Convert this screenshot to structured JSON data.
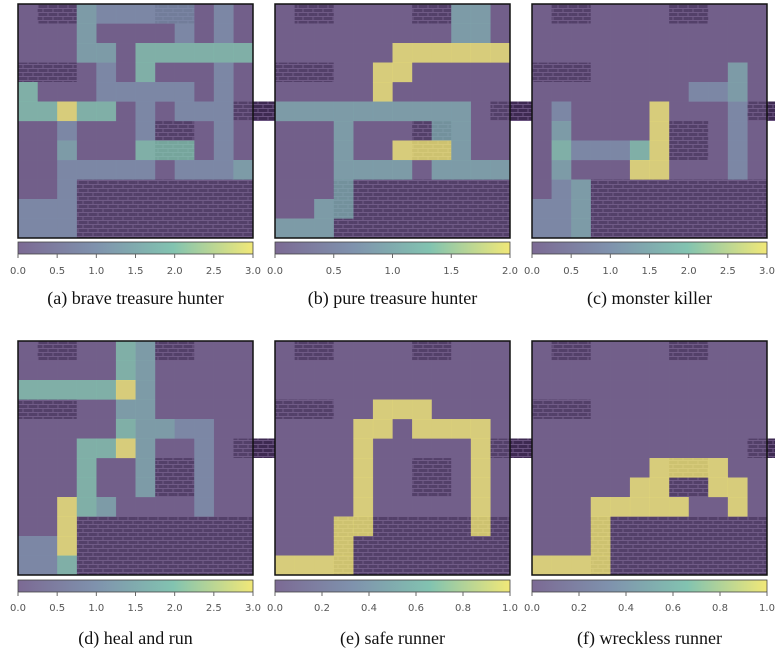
{
  "chart_data": [
    {
      "type": "heatmap",
      "caption": "(a) brave treasure hunter",
      "ylim": [
        0,
        3
      ],
      "yticks": [
        {
          "value": 0,
          "label": "0.0"
        },
        0.5,
        {
          "value": 1,
          "label": "1.0"
        },
        1.5,
        {
          "value": 2,
          "label": "2.0"
        },
        2.5,
        {
          "value": 3,
          "label": "3.0"
        }
      ],
      "values": [
        [
          0,
          0,
          0,
          1.5,
          1,
          1,
          1,
          1,
          1,
          0,
          1,
          0
        ],
        [
          0,
          0,
          0,
          1.5,
          0,
          0,
          0,
          0,
          1,
          0,
          1,
          0
        ],
        [
          0,
          0,
          0,
          1.5,
          1.5,
          0,
          2,
          2,
          2,
          2,
          2,
          2
        ],
        [
          0,
          0,
          0,
          0,
          1,
          0,
          2,
          0,
          0,
          0,
          1,
          0
        ],
        [
          2,
          0,
          0,
          0,
          1,
          1,
          1,
          1,
          1,
          0,
          1,
          0
        ],
        [
          2,
          2,
          3,
          2,
          2,
          0,
          1,
          0,
          1,
          1,
          1,
          0
        ],
        [
          0,
          0,
          1,
          0,
          0,
          0,
          1,
          0,
          0,
          0,
          1,
          0
        ],
        [
          0,
          0,
          1.5,
          0,
          0,
          0,
          2,
          2,
          2,
          0,
          1,
          0
        ],
        [
          0,
          0,
          1,
          1,
          1,
          1,
          1,
          0,
          1,
          1,
          1,
          1.5
        ],
        [
          0,
          0,
          1,
          0,
          0,
          0,
          0,
          0,
          0,
          0,
          0,
          0
        ],
        [
          1,
          1,
          1,
          0,
          0,
          0,
          0,
          0,
          0,
          0,
          0,
          0
        ],
        [
          1,
          1,
          1,
          0,
          0,
          0,
          0,
          0,
          0,
          0,
          0,
          0
        ]
      ]
    },
    {
      "type": "heatmap",
      "caption": "(b) pure treasure hunter",
      "ylim": [
        0,
        2
      ],
      "yticks": [
        {
          "value": 0,
          "label": "0.0"
        },
        0.5,
        {
          "value": 1,
          "label": "1.0"
        },
        1.5,
        {
          "value": 2,
          "label": "2.0"
        }
      ],
      "values": [
        [
          0,
          0,
          0,
          0,
          0,
          0,
          0,
          0,
          0,
          1,
          1,
          0
        ],
        [
          0,
          0,
          0,
          0,
          0,
          0,
          0,
          0,
          0,
          1,
          1,
          0
        ],
        [
          0,
          0,
          0,
          0,
          0,
          0,
          2,
          2,
          2,
          2,
          2,
          2
        ],
        [
          0,
          0,
          0,
          0,
          0,
          2,
          2,
          0,
          0,
          0,
          0,
          0
        ],
        [
          0,
          0,
          0,
          0,
          0,
          2,
          0,
          0,
          0,
          0,
          0,
          0
        ],
        [
          1,
          1,
          1,
          1,
          1,
          1,
          1,
          1,
          1,
          1,
          0,
          0
        ],
        [
          0,
          0,
          0,
          1,
          0,
          0,
          0,
          0,
          1,
          1,
          0,
          0
        ],
        [
          0,
          0,
          0,
          1,
          0,
          0,
          2,
          2,
          2,
          1,
          0,
          0
        ],
        [
          0,
          0,
          0,
          1,
          1,
          1,
          1,
          0,
          1,
          1,
          1,
          1
        ],
        [
          0,
          0,
          0,
          1,
          0,
          0,
          0,
          0,
          0,
          0,
          0,
          0
        ],
        [
          0,
          0,
          1,
          1,
          0,
          0,
          0,
          0,
          0,
          0,
          0,
          0
        ],
        [
          1,
          1,
          1,
          0,
          0,
          0,
          0,
          0,
          0,
          0,
          0,
          0
        ]
      ]
    },
    {
      "type": "heatmap",
      "caption": "(c) monster killer",
      "ylim": [
        0,
        3
      ],
      "yticks": [
        {
          "value": 0,
          "label": "0.0"
        },
        0.5,
        {
          "value": 1,
          "label": "1.0"
        },
        1.5,
        {
          "value": 2,
          "label": "2.0"
        },
        2.5,
        {
          "value": 3,
          "label": "3.0"
        }
      ],
      "values": [
        [
          0,
          0,
          0,
          0,
          0,
          0,
          0,
          0,
          0,
          0,
          0,
          0
        ],
        [
          0,
          0,
          0,
          0,
          0,
          0,
          0,
          0,
          0,
          0,
          0,
          0
        ],
        [
          0,
          0,
          0,
          0,
          0,
          0,
          0,
          0,
          0,
          0,
          0,
          0
        ],
        [
          0,
          0,
          0,
          0,
          0,
          0,
          0,
          0,
          0,
          0,
          1.5,
          0
        ],
        [
          0,
          0,
          0,
          0,
          0,
          0,
          0,
          0,
          1,
          1,
          1.5,
          0
        ],
        [
          0,
          1,
          0,
          0,
          0,
          0,
          3,
          0,
          0,
          0,
          1,
          0
        ],
        [
          0,
          1.5,
          0,
          0,
          0,
          0,
          3,
          0,
          0,
          0,
          1,
          0
        ],
        [
          0,
          2,
          1,
          1,
          1,
          2,
          3,
          0,
          0,
          0,
          1,
          0
        ],
        [
          0,
          1.5,
          0,
          0,
          0,
          3,
          3,
          0,
          0,
          0,
          1,
          0
        ],
        [
          0,
          1,
          1.5,
          0,
          0,
          0,
          0,
          0,
          0,
          0,
          0,
          0
        ],
        [
          1,
          1,
          1.5,
          0,
          0,
          0,
          0,
          0,
          0,
          0,
          0,
          0
        ],
        [
          1,
          1,
          1.5,
          0,
          0,
          0,
          0,
          0,
          0,
          0,
          0,
          0
        ]
      ]
    },
    {
      "type": "heatmap",
      "caption": "(d) heal and run",
      "ylim": [
        0,
        3
      ],
      "yticks": [
        {
          "value": 0,
          "label": "0.0"
        },
        0.5,
        {
          "value": 1,
          "label": "1.0"
        },
        1.5,
        {
          "value": 2,
          "label": "2.0"
        },
        2.5,
        {
          "value": 3,
          "label": "3.0"
        }
      ],
      "values": [
        [
          0,
          0,
          0,
          0,
          0,
          2,
          1.5,
          0,
          0,
          0,
          0,
          0
        ],
        [
          0,
          0,
          0,
          0,
          0,
          2,
          1.5,
          0,
          0,
          0,
          0,
          0
        ],
        [
          2,
          2,
          2,
          2,
          2,
          3,
          1.5,
          0,
          0,
          0,
          0,
          0
        ],
        [
          0,
          0,
          0,
          0,
          0,
          1.5,
          1.5,
          0,
          0,
          0,
          0,
          0
        ],
        [
          0,
          0,
          0,
          0,
          0,
          2,
          1.5,
          1.5,
          1,
          1,
          0,
          0
        ],
        [
          0,
          0,
          0,
          2,
          2,
          3,
          1.5,
          0,
          0,
          1,
          0,
          0
        ],
        [
          0,
          0,
          0,
          2,
          0,
          0,
          1.5,
          0,
          0,
          1,
          0,
          0
        ],
        [
          0,
          0,
          0,
          2,
          0,
          0,
          1.5,
          0,
          0,
          1,
          0,
          0
        ],
        [
          0,
          0,
          3,
          2,
          1.5,
          0,
          0,
          0,
          0,
          1,
          0,
          0
        ],
        [
          0,
          0,
          3,
          0,
          0,
          0,
          0,
          0,
          0,
          0,
          0,
          0
        ],
        [
          1,
          1,
          3,
          0,
          0,
          0,
          0,
          0,
          0,
          0,
          0,
          0
        ],
        [
          1,
          1,
          2,
          0,
          0,
          0,
          0,
          0,
          0,
          0,
          0,
          0
        ]
      ]
    },
    {
      "type": "heatmap",
      "caption": "(e) safe runner",
      "ylim": [
        0,
        1
      ],
      "yticks": [
        {
          "value": 0,
          "label": "0.0"
        },
        0.2,
        0.4,
        0.6,
        0.8,
        {
          "value": 1,
          "label": "1.0"
        }
      ],
      "values": [
        [
          0,
          0,
          0,
          0,
          0,
          0,
          0,
          0,
          0,
          0,
          0,
          0
        ],
        [
          0,
          0,
          0,
          0,
          0,
          0,
          0,
          0,
          0,
          0,
          0,
          0
        ],
        [
          0,
          0,
          0,
          0,
          0,
          0,
          0,
          0,
          0,
          0,
          0,
          0
        ],
        [
          0,
          0,
          0,
          0,
          0,
          1,
          1,
          1,
          0,
          0,
          0,
          0
        ],
        [
          0,
          0,
          0,
          0,
          1,
          1,
          0,
          1,
          1,
          1,
          1,
          0
        ],
        [
          0,
          0,
          0,
          0,
          1,
          0,
          0,
          0,
          0,
          0,
          1,
          0
        ],
        [
          0,
          0,
          0,
          0,
          1,
          0,
          0,
          0,
          0,
          0,
          1,
          0
        ],
        [
          0,
          0,
          0,
          0,
          1,
          0,
          0,
          0,
          0,
          0,
          1,
          0
        ],
        [
          0,
          0,
          0,
          0,
          1,
          0,
          0,
          0,
          0,
          0,
          1,
          0
        ],
        [
          0,
          0,
          0,
          1,
          1,
          0,
          0,
          0,
          0,
          0,
          1,
          0
        ],
        [
          0,
          0,
          0,
          1,
          0,
          0,
          0,
          0,
          0,
          0,
          0,
          0
        ],
        [
          1,
          1,
          1,
          1,
          0,
          0,
          0,
          0,
          0,
          0,
          0,
          0
        ]
      ]
    },
    {
      "type": "heatmap",
      "caption": "(f) wreckless runner",
      "ylim": [
        0,
        1
      ],
      "yticks": [
        {
          "value": 0,
          "label": "0.0"
        },
        0.2,
        0.4,
        0.6,
        0.8,
        {
          "value": 1,
          "label": "1.0"
        }
      ],
      "values": [
        [
          0,
          0,
          0,
          0,
          0,
          0,
          0,
          0,
          0,
          0,
          0,
          0
        ],
        [
          0,
          0,
          0,
          0,
          0,
          0,
          0,
          0,
          0,
          0,
          0,
          0
        ],
        [
          0,
          0,
          0,
          0,
          0,
          0,
          0,
          0,
          0,
          0,
          0,
          0
        ],
        [
          0,
          0,
          0,
          0,
          0,
          0,
          0,
          0,
          0,
          0,
          0,
          0
        ],
        [
          0,
          0,
          0,
          0,
          0,
          0,
          0,
          0,
          0,
          0,
          0,
          0
        ],
        [
          0,
          0,
          0,
          0,
          0,
          0,
          0,
          0,
          0,
          0,
          0,
          0
        ],
        [
          0,
          0,
          0,
          0,
          0,
          0,
          1,
          1,
          1,
          1,
          0,
          0
        ],
        [
          0,
          0,
          0,
          0,
          0,
          1,
          1,
          0,
          0,
          1,
          1,
          0
        ],
        [
          0,
          0,
          0,
          1,
          1,
          1,
          1,
          1,
          0,
          0,
          1,
          0
        ],
        [
          0,
          0,
          0,
          1,
          0,
          0,
          0,
          0,
          0,
          0,
          0,
          0
        ],
        [
          0,
          0,
          0,
          1,
          0,
          0,
          0,
          0,
          0,
          0,
          0,
          0
        ],
        [
          1,
          1,
          1,
          1,
          0,
          0,
          0,
          0,
          0,
          0,
          0,
          0
        ]
      ]
    }
  ]
}
